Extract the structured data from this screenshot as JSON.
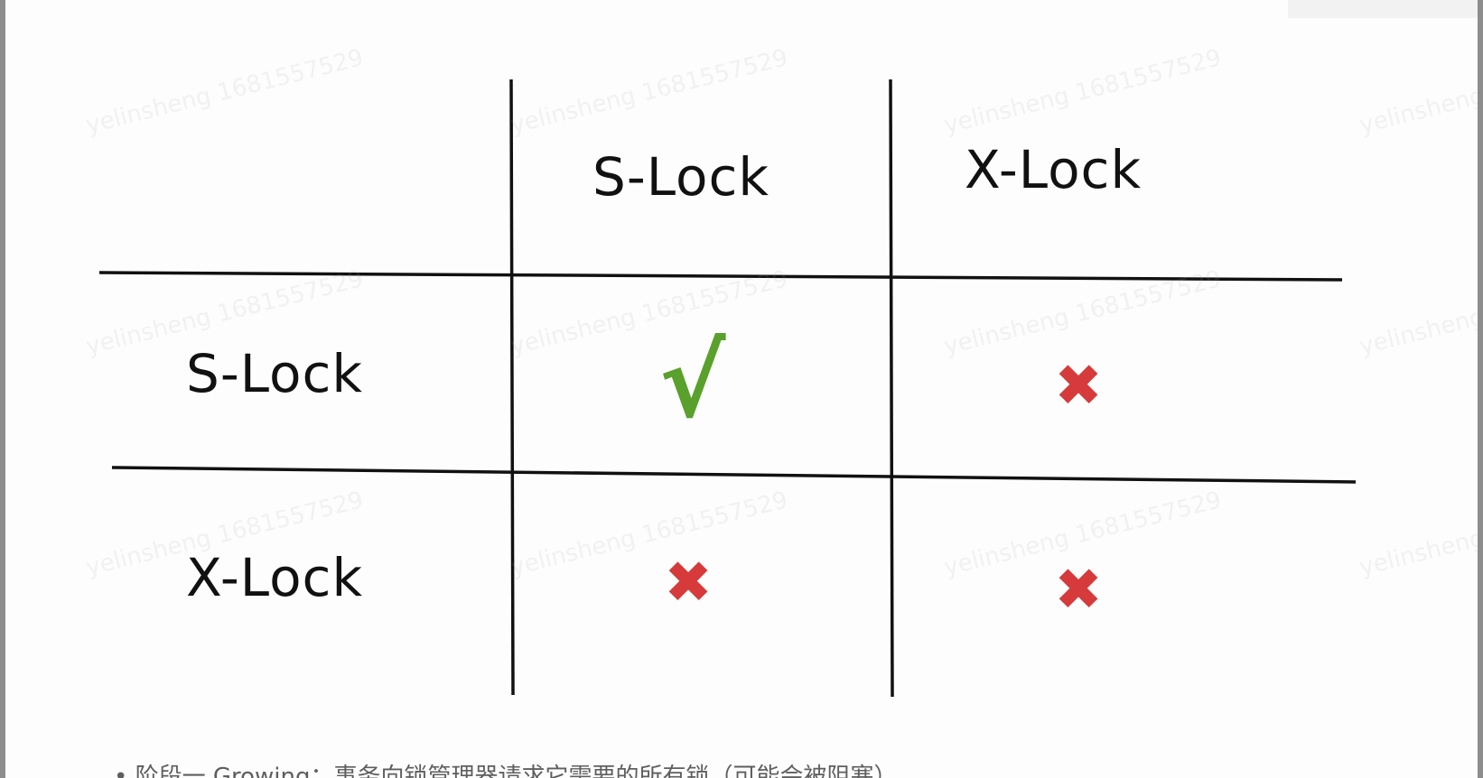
{
  "diagram": {
    "column_headers": [
      "S-Lock",
      "X-Lock"
    ],
    "row_headers": [
      "S-Lock",
      "X-Lock"
    ],
    "cells": [
      [
        "√",
        "✖"
      ],
      [
        "✖",
        "✖"
      ]
    ],
    "compatibility": [
      [
        "compatible",
        "incompatible"
      ],
      [
        "incompatible",
        "incompatible"
      ]
    ]
  },
  "watermark": {
    "text": "yelinsheng 1681557529"
  },
  "footer": {
    "text": "• 阶段一 Growing：事务向锁管理器请求它需要的所有锁（可能会被阻塞），"
  },
  "colors": {
    "check": "#5aa02c",
    "cross": "#d63a3a",
    "line": "#111111"
  }
}
